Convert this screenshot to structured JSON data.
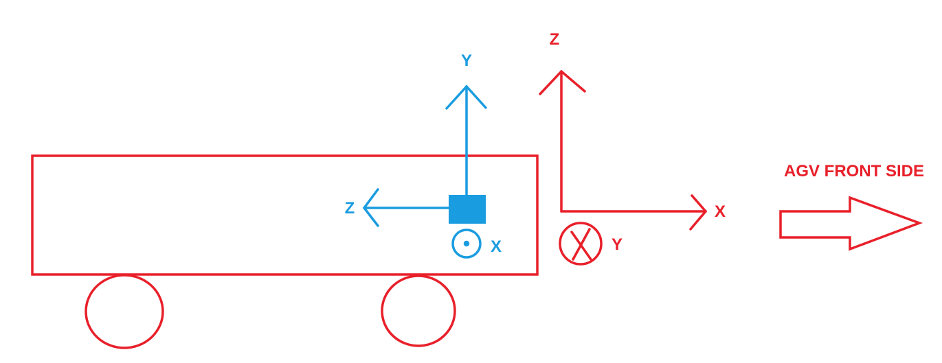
{
  "colors": {
    "red": "#e8202a",
    "blue": "#1a9ce0"
  },
  "sensor_frame": {
    "y_label": "Y",
    "z_label": "Z",
    "x_label": "X",
    "x_symbol": "dot-out-of-page"
  },
  "world_frame": {
    "z_label": "Z",
    "x_label": "X",
    "y_label": "Y",
    "y_symbol": "cross-into-page"
  },
  "front_label": "AGV FRONT SIDE"
}
